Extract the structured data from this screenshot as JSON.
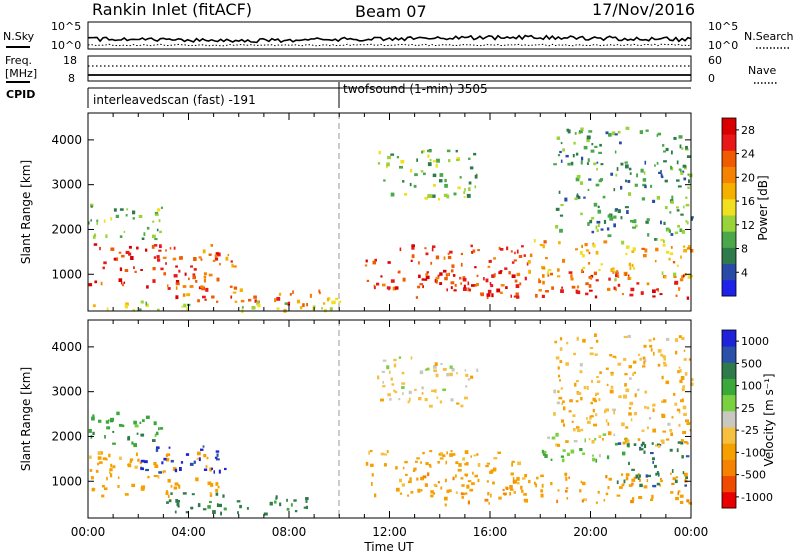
{
  "header": {
    "title": "Rankin Inlet (fitACF)",
    "beam": "Beam 07",
    "date": "17/Nov/2016"
  },
  "panels": {
    "nsky_label": "N.Sky",
    "nsky_ticks": [
      "10^5",
      "10^0"
    ],
    "nsearch_label": "N.Search",
    "nsearch_ticks": [
      "10^5",
      "10^0"
    ],
    "freq_label_1": "Freq.",
    "freq_label_2": "[MHz]",
    "freq_ticks": [
      "18",
      "8"
    ],
    "nave_label": "Nave",
    "nave_ticks": [
      "60",
      "0"
    ],
    "cpid_label": "CPID",
    "cpid_segments": [
      {
        "name": "interleavedscan (fast) -191",
        "start_h": 0,
        "end_h": 10
      },
      {
        "name": "twofsound (1-min) 3505",
        "start_h": 10,
        "end_h": 24
      }
    ]
  },
  "colors": {
    "power": [
      "#1e22e8",
      "#2a4aa8",
      "#2f7a4a",
      "#4aa84a",
      "#9ad23a",
      "#f0e020",
      "#f5b000",
      "#f58200",
      "#f05a00",
      "#e81818",
      "#d80000"
    ],
    "velocity": [
      "#e80000",
      "#f04a00",
      "#f58200",
      "#f5a000",
      "#f5c040",
      "#c8c8c0",
      "#7ad040",
      "#3aa83a",
      "#2f7a4a",
      "#2a50a8",
      "#1e22d8"
    ]
  },
  "chart_data": [
    {
      "type": "heatmap",
      "panel": "power",
      "xlabel": "Time UT",
      "ylabel": "Slant Range [km]",
      "xlim": [
        0,
        24
      ],
      "ylim": [
        180,
        4600
      ],
      "x_tick_labels": [
        "00:00",
        "04:00",
        "08:00",
        "12:00",
        "16:00",
        "20:00",
        "00:00"
      ],
      "y_ticks": [
        1000,
        2000,
        3000,
        4000
      ],
      "y_tick_labels": [
        "1000",
        "2000",
        "3000",
        "4000"
      ],
      "colorbar_label": "Power [dB]",
      "colorbar_ticks": [
        "4",
        "8",
        "12",
        "16",
        "20",
        "24",
        "28"
      ],
      "colorbar_range": [
        0,
        30
      ],
      "mode_change_h": 10,
      "echo_regions": [
        {
          "t0": 0.0,
          "t1": 5.2,
          "r0": 700,
          "r1": 1700,
          "v": 26
        },
        {
          "t0": 4.5,
          "t1": 6.0,
          "r0": 1150,
          "r1": 1600,
          "v": 22
        },
        {
          "t0": 3.0,
          "t1": 6.5,
          "r0": 400,
          "r1": 800,
          "v": 24
        },
        {
          "t0": 6.0,
          "t1": 9.2,
          "r0": 300,
          "r1": 700,
          "v": 22
        },
        {
          "t0": 8.5,
          "t1": 10.0,
          "r0": 250,
          "r1": 500,
          "v": 14
        },
        {
          "t0": 0.0,
          "t1": 3.0,
          "r0": 1800,
          "r1": 2600,
          "v": 10
        },
        {
          "t0": 0.0,
          "t1": 10.0,
          "r0": 200,
          "r1": 420,
          "v": 14
        },
        {
          "t0": 11.0,
          "t1": 17.5,
          "r0": 700,
          "r1": 1700,
          "v": 25
        },
        {
          "t0": 13.0,
          "t1": 24.0,
          "r0": 500,
          "r1": 1100,
          "v": 26
        },
        {
          "t0": 17.5,
          "t1": 24.0,
          "r0": 900,
          "r1": 1800,
          "v": 18
        },
        {
          "t0": 11.5,
          "t1": 15.5,
          "r0": 2700,
          "r1": 3800,
          "v": 10
        },
        {
          "t0": 18.5,
          "t1": 24.0,
          "r0": 1800,
          "r1": 4300,
          "v": 8
        }
      ]
    },
    {
      "type": "heatmap",
      "panel": "velocity",
      "xlabel": "Time UT",
      "ylabel": "Slant Range [km]",
      "xlim": [
        0,
        24
      ],
      "ylim": [
        180,
        4600
      ],
      "x_tick_labels": [
        "00:00",
        "04:00",
        "08:00",
        "12:00",
        "16:00",
        "20:00",
        "00:00"
      ],
      "y_ticks": [
        1000,
        2000,
        3000,
        4000
      ],
      "y_tick_labels": [
        "1000",
        "2000",
        "3000",
        "4000"
      ],
      "colorbar_label": "Velocity [m s⁻¹]",
      "colorbar_ticks": [
        "1000",
        "500",
        "100",
        "25",
        "-25",
        "-100",
        "-500",
        "-1000"
      ],
      "mode_change_h": 10,
      "echo_regions": [
        {
          "t0": 0.0,
          "t1": 5.2,
          "r0": 700,
          "r1": 1700,
          "v": -150
        },
        {
          "t0": 2.0,
          "t1": 5.5,
          "r0": 1200,
          "r1": 1800,
          "v": 600
        },
        {
          "t0": 3.0,
          "t1": 9.0,
          "r0": 300,
          "r1": 800,
          "v": 150
        },
        {
          "t0": 0.0,
          "t1": 3.0,
          "r0": 1800,
          "r1": 2600,
          "v": 80
        },
        {
          "t0": 11.0,
          "t1": 17.5,
          "r0": 700,
          "r1": 1700,
          "v": -150
        },
        {
          "t0": 13.0,
          "t1": 24.0,
          "r0": 500,
          "r1": 1200,
          "v": -200
        },
        {
          "t0": 18.0,
          "t1": 21.5,
          "r0": 1500,
          "r1": 2100,
          "v": 10
        },
        {
          "t0": 21.0,
          "t1": 24.0,
          "r0": 900,
          "r1": 1900,
          "v": 200
        },
        {
          "t0": 11.5,
          "t1": 15.5,
          "r0": 2700,
          "r1": 3800,
          "v": -60
        },
        {
          "t0": 18.5,
          "t1": 24.0,
          "r0": 1800,
          "r1": 4300,
          "v": -100
        }
      ]
    }
  ]
}
